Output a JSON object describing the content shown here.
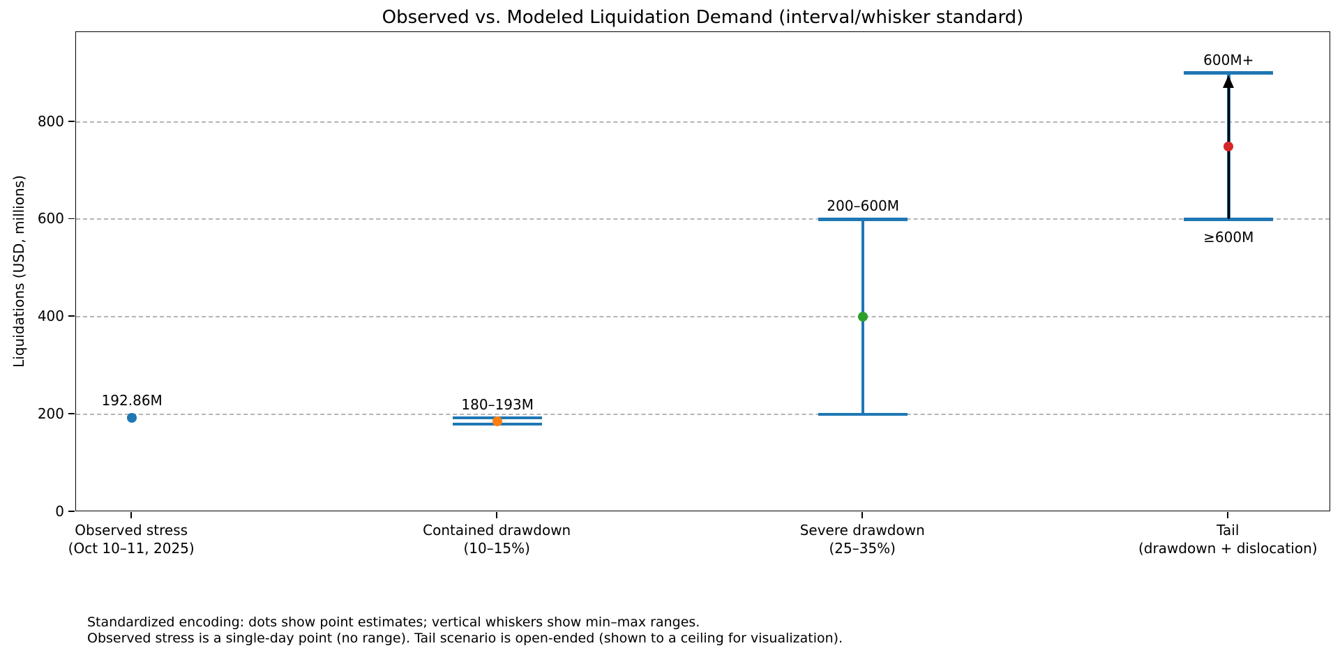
{
  "title": "Observed vs. Modeled Liquidation Demand (interval/whisker standard)",
  "caption": {
    "line1": "Standardized encoding: dots show point estimates; vertical whiskers show min–max ranges.",
    "line2": "Observed stress is a single-day point (no range). Tail scenario is open-ended (shown to a ceiling for visualization)."
  },
  "chart_data": {
    "type": "scatter",
    "variant": "point estimates with min–max whisker intervals",
    "title": "Observed vs. Modeled Liquidation Demand (interval/whisker standard)",
    "xlabel": "",
    "ylabel": "Liquidations (USD, millions)",
    "ylim": [
      0,
      984
    ],
    "xlim": [
      -0.153,
      3.28
    ],
    "yticks": [
      0,
      200,
      400,
      600,
      800
    ],
    "grid": {
      "axis": "y",
      "style": "dashed",
      "color": "#b4b4b4"
    },
    "legend": "none",
    "whisker_color": "#1f77b4",
    "arrow_color": "#000000",
    "series": [
      {
        "tick_label_lines": [
          "Observed stress",
          "(Oct 10–11, 2025)"
        ],
        "point": 192.86,
        "min": null,
        "max": null,
        "dot_color": "#1f77b4",
        "annotation": "192.86M"
      },
      {
        "tick_label_lines": [
          "Contained drawdown",
          "(10–15%)"
        ],
        "point": 186.5,
        "min": 180,
        "max": 193,
        "dot_color": "#ff7f0e",
        "annotation": "180–193M"
      },
      {
        "tick_label_lines": [
          "Severe drawdown",
          "(25–35%)"
        ],
        "point": 400,
        "min": 200,
        "max": 600,
        "dot_color": "#2ca02c",
        "annotation": "200–600M"
      },
      {
        "tick_label_lines": [
          "Tail",
          "(drawdown + dislocation)"
        ],
        "point": 750,
        "min": 600,
        "max": 900,
        "dot_color": "#d62728",
        "annotation": "600M+",
        "annotation_below": "≥600M",
        "open_ended_arrow": true,
        "note": "open-ended; max drawn as visualization ceiling at 900"
      }
    ]
  }
}
